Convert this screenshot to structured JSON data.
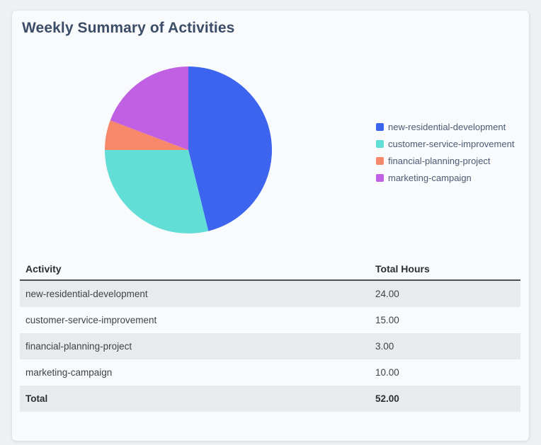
{
  "card": {
    "title": "Weekly Summary of Activities"
  },
  "chart_data": {
    "type": "pie",
    "title": "Weekly Summary of Activities",
    "legend_position": "right",
    "start_angle_deg": 0,
    "direction": "clockwise",
    "total": 52,
    "series": [
      {
        "name": "new-residential-development",
        "value": 24,
        "color": "#3c64ee"
      },
      {
        "name": "customer-service-improvement",
        "value": 15,
        "color": "#62ded7"
      },
      {
        "name": "financial-planning-project",
        "value": 3,
        "color": "#f7886a"
      },
      {
        "name": "marketing-campaign",
        "value": 10,
        "color": "#bf61e2"
      }
    ]
  },
  "table": {
    "columns": [
      "Activity",
      "Total Hours"
    ],
    "rows": [
      {
        "activity": "new-residential-development",
        "hours": "24.00"
      },
      {
        "activity": "customer-service-improvement",
        "hours": "15.00"
      },
      {
        "activity": "financial-planning-project",
        "hours": "3.00"
      },
      {
        "activity": "marketing-campaign",
        "hours": "10.00"
      }
    ],
    "total_row": {
      "label": "Total",
      "hours": "52.00"
    }
  }
}
